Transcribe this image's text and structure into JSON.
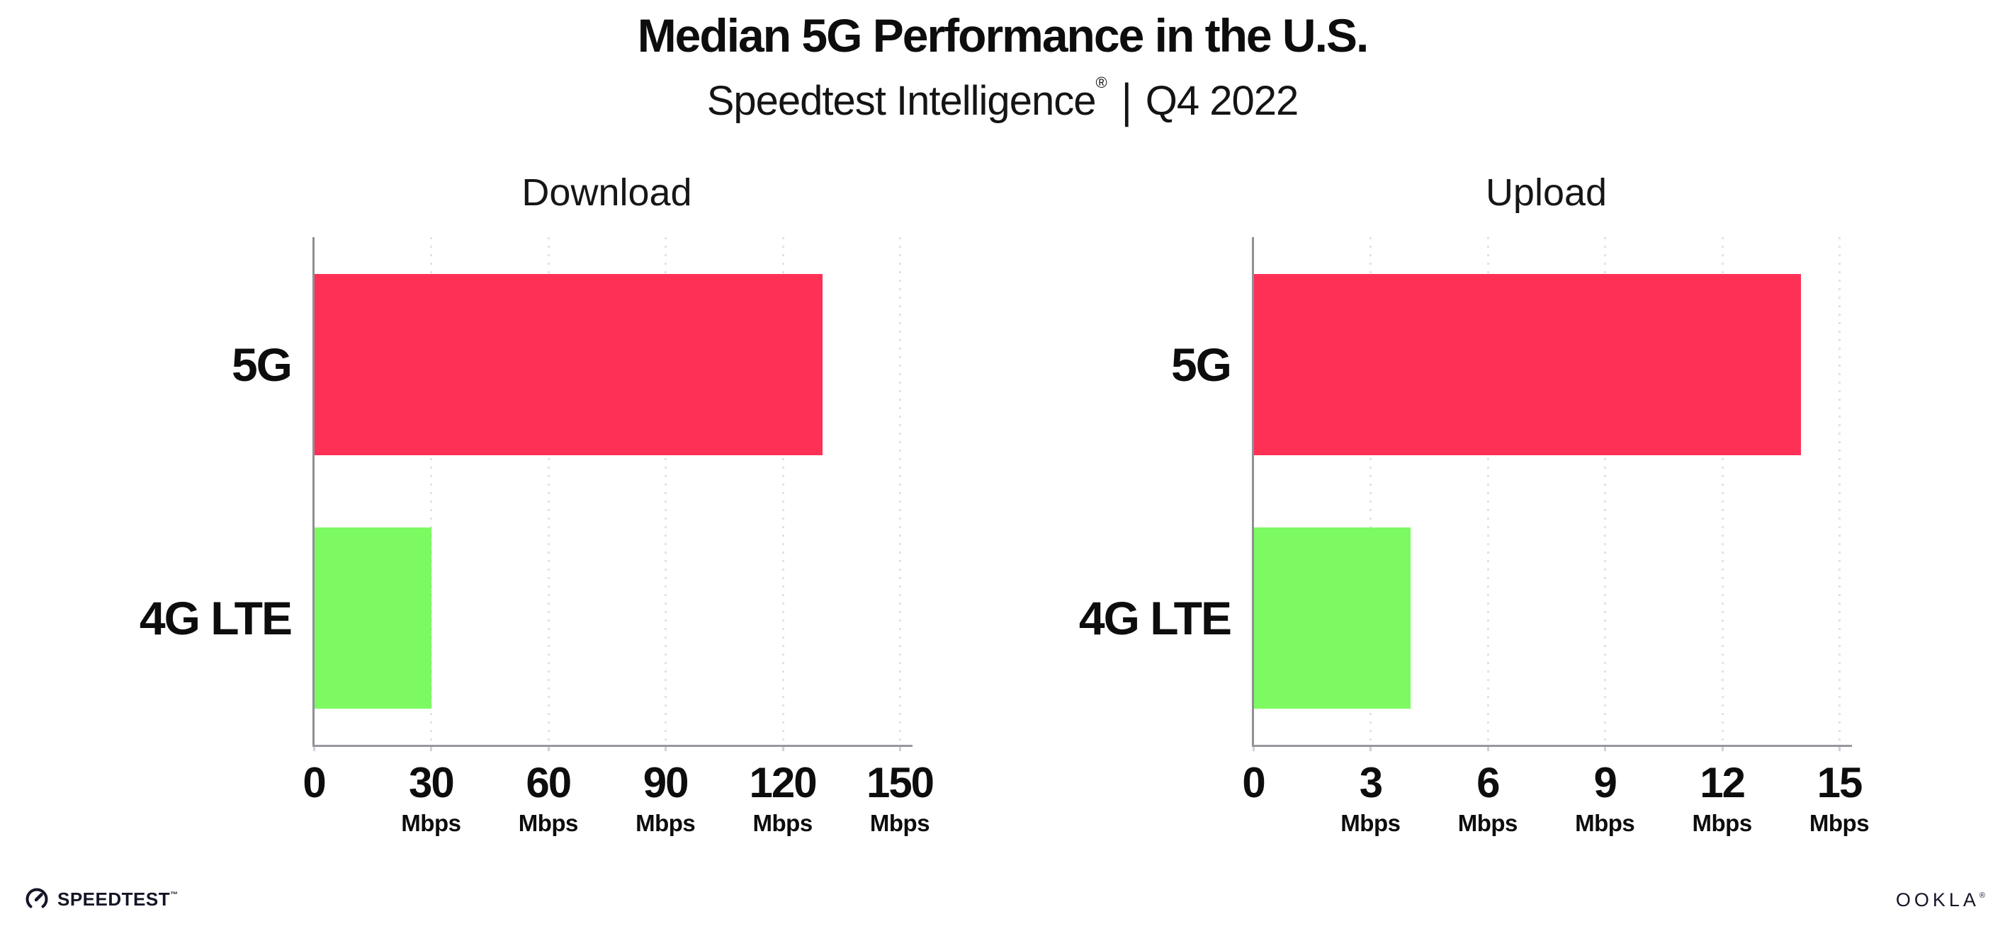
{
  "header": {
    "title": "Median 5G Performance in the U.S.",
    "subtitle_brand": "Speedtest Intelligence",
    "subtitle_reg": "®",
    "subtitle_divider": "|",
    "subtitle_period": "Q4 2022"
  },
  "footer": {
    "speedtest_wordmark": "SPEEDTEST",
    "speedtest_tm": "™",
    "ookla_wordmark": "OOKLA",
    "ookla_reg": "®"
  },
  "colors": {
    "bar_5g": "#FF3056",
    "bar_4g_lte": "#7DFA62",
    "gridline": "#E0E2EC",
    "axis": "#97979E",
    "text": "#0D0D0D"
  },
  "chart_data": [
    {
      "type": "bar",
      "orientation": "horizontal",
      "title": "Download",
      "categories": [
        "5G",
        "4G LTE"
      ],
      "values": [
        130,
        30
      ],
      "unit": "Mbps",
      "xlim": [
        0,
        150
      ],
      "xticks": [
        0,
        30,
        60,
        90,
        120,
        150
      ],
      "bar_colors": [
        "#FF3056",
        "#7DFA62"
      ],
      "grid": "dotted-vertical",
      "legend": "none"
    },
    {
      "type": "bar",
      "orientation": "horizontal",
      "title": "Upload",
      "categories": [
        "5G",
        "4G LTE"
      ],
      "values": [
        14,
        4
      ],
      "unit": "Mbps",
      "xlim": [
        0,
        15
      ],
      "xticks": [
        0,
        3,
        6,
        9,
        12,
        15
      ],
      "bar_colors": [
        "#FF3056",
        "#7DFA62"
      ],
      "grid": "dotted-vertical",
      "legend": "none"
    }
  ]
}
